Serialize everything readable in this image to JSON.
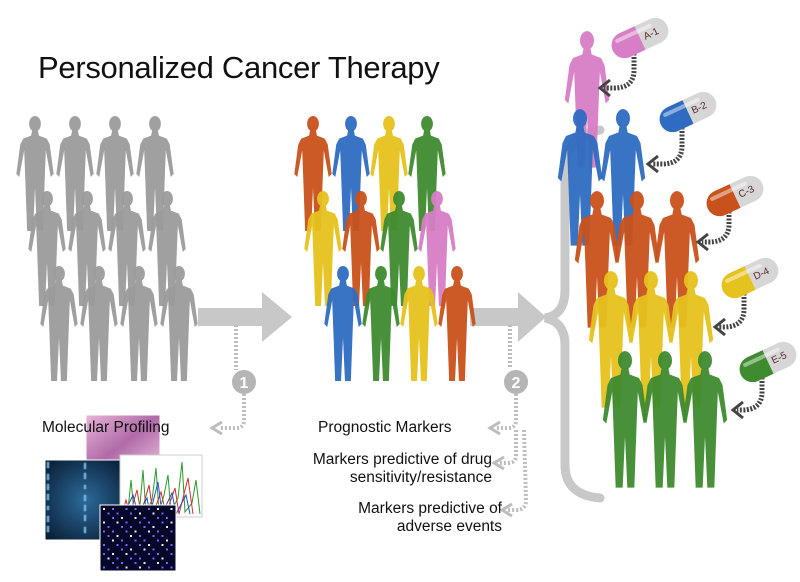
{
  "title": "Personalized Cancer Therapy",
  "steps": [
    {
      "number": "1",
      "label": "Molecular Profiling"
    },
    {
      "number": "2",
      "label": "Prognostic Markers"
    }
  ],
  "markers": [
    {
      "line1": "Markers predictive of drug",
      "line2": "sensitivity/resistance"
    },
    {
      "line1": "Markers predictive of",
      "line2": "adverse events"
    }
  ],
  "pills": [
    {
      "label": "A-1",
      "color": "#d77ec6"
    },
    {
      "label": "B-2",
      "color": "#2f6cc1"
    },
    {
      "label": "C-3",
      "color": "#c9521c"
    },
    {
      "label": "D-4",
      "color": "#e6c21e"
    },
    {
      "label": "E-5",
      "color": "#3f8b2f"
    }
  ],
  "colors": {
    "untreated": "#9b9b9b",
    "orange": "#c9521c",
    "blue": "#2f6cc1",
    "yellow": "#e6c21e",
    "green": "#3f8b2f",
    "pink": "#d77ec6",
    "arrow": "#c4c4c4"
  }
}
